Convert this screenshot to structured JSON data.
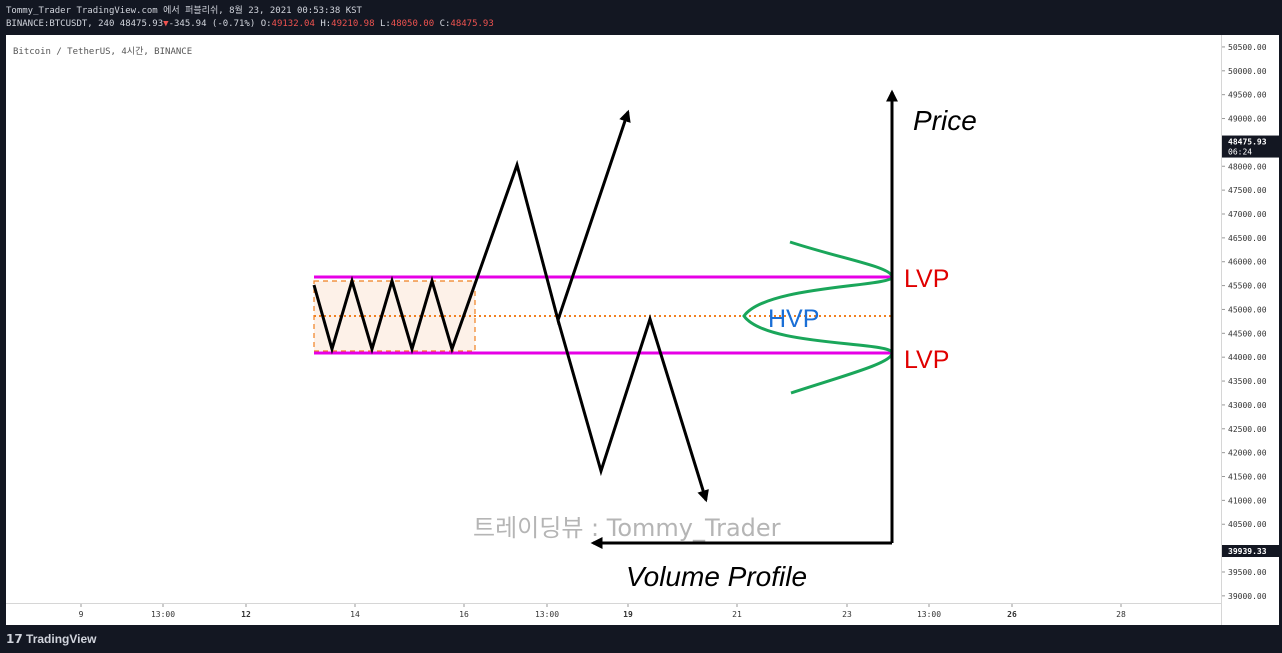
{
  "header": {
    "author_line": "Tommy_Trader TradingView.com 에서 퍼블리쉬, 8월 23, 2021 00:53:38 KST",
    "symbol_line_prefix": "BINANCE:BTCUSDT, 240 48475.93",
    "change_arrow": "▼",
    "change_text": "-345.94 (-0.71%)",
    "o_label": "O:",
    "o_value": "49132.04",
    "h_label": "H:",
    "h_value": "49210.98",
    "l_label": "L:",
    "l_value": "48050.00",
    "c_label": "C:",
    "c_value": "48475.93"
  },
  "chart_title": "Bitcoin / TetherUS, 4시간, BINANCE",
  "footer": {
    "brand": "TradingView"
  },
  "colors": {
    "range_line": "#e600e6",
    "profile": "#1aa65a",
    "lvp_text": "#e00000",
    "hvp_text": "#1a6fd6",
    "midline": "#f08020",
    "box_fill": "#fdf1e8",
    "down": "#ef5350"
  },
  "chart_data": {
    "type": "line",
    "title": "Bitcoin / TetherUS, 4시간, BINANCE",
    "ylim": [
      38850,
      50750
    ],
    "y_ticks": [
      "50500.00",
      "50000.00",
      "49500.00",
      "49000.00",
      "48000.00",
      "47500.00",
      "47000.00",
      "46500.00",
      "46000.00",
      "45500.00",
      "45000.00",
      "44500.00",
      "44000.00",
      "43500.00",
      "43000.00",
      "42500.00",
      "42000.00",
      "41500.00",
      "41000.00",
      "40500.00",
      "39500.00",
      "39000.00"
    ],
    "current_price": {
      "value": "48475.93",
      "countdown": "06:24"
    },
    "low_marker": "39939.33",
    "x_ticks": [
      {
        "label": "9",
        "bold": false
      },
      {
        "label": "13:00",
        "bold": false
      },
      {
        "label": "12",
        "bold": true
      },
      {
        "label": "14",
        "bold": false
      },
      {
        "label": "16",
        "bold": false
      },
      {
        "label": "13:00",
        "bold": false
      },
      {
        "label": "19",
        "bold": true
      },
      {
        "label": "21",
        "bold": false
      },
      {
        "label": "23",
        "bold": false
      },
      {
        "label": "13:00",
        "bold": false
      },
      {
        "label": "26",
        "bold": true
      },
      {
        "label": "28",
        "bold": false
      }
    ],
    "annotations": {
      "price_label": "Price",
      "volume_label": "Volume Profile",
      "lvp_upper": "LVP",
      "lvp_lower": "LVP",
      "hvp": "HVP",
      "watermark": "트레이딩뷰 : Tommy_Trader"
    }
  }
}
